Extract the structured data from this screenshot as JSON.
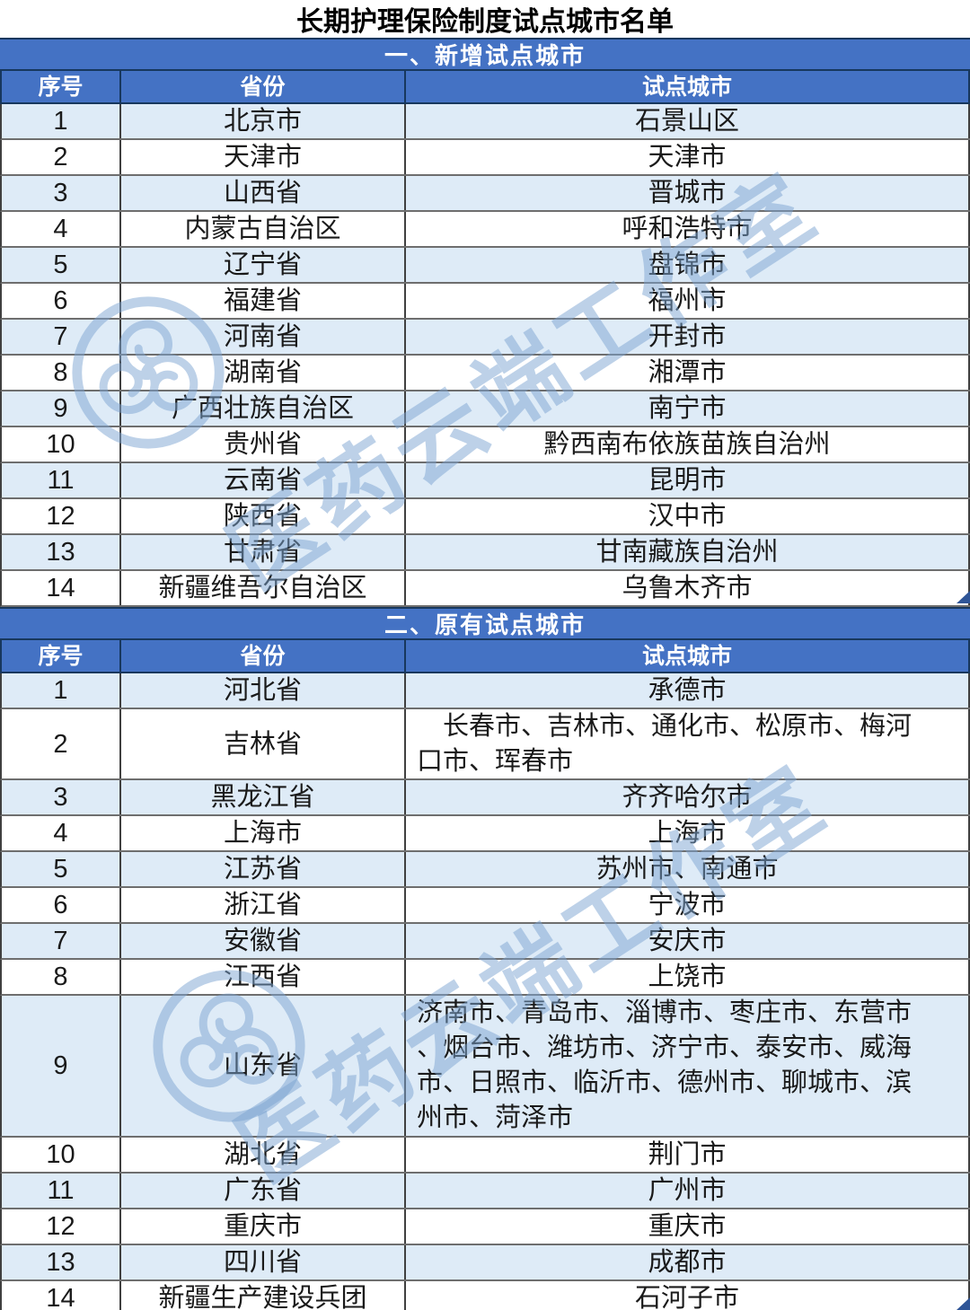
{
  "title": "长期护理保险制度试点城市名单",
  "columns": [
    "序号",
    "省份",
    "试点城市"
  ],
  "sections": [
    {
      "heading": "一、新增试点城市",
      "rows": [
        {
          "no": "1",
          "province": "北京市",
          "cities": "石景山区"
        },
        {
          "no": "2",
          "province": "天津市",
          "cities": "天津市"
        },
        {
          "no": "3",
          "province": "山西省",
          "cities": "晋城市"
        },
        {
          "no": "4",
          "province": "内蒙古自治区",
          "cities": "呼和浩特市"
        },
        {
          "no": "5",
          "province": "辽宁省",
          "cities": "盘锦市"
        },
        {
          "no": "6",
          "province": "福建省",
          "cities": "福州市"
        },
        {
          "no": "7",
          "province": "河南省",
          "cities": "开封市"
        },
        {
          "no": "8",
          "province": "湖南省",
          "cities": "湘潭市"
        },
        {
          "no": "9",
          "province": "广西壮族自治区",
          "cities": "南宁市"
        },
        {
          "no": "10",
          "province": "贵州省",
          "cities": "黔西南布依族苗族自治州"
        },
        {
          "no": "11",
          "province": "云南省",
          "cities": "昆明市"
        },
        {
          "no": "12",
          "province": "陕西省",
          "cities": "汉中市"
        },
        {
          "no": "13",
          "province": "甘肃省",
          "cities": "甘南藏族自治州"
        },
        {
          "no": "14",
          "province": "新疆维吾尔自治区",
          "cities": "乌鲁木齐市"
        }
      ]
    },
    {
      "heading": "二、原有试点城市",
      "rows": [
        {
          "no": "1",
          "province": "河北省",
          "cities": "承德市"
        },
        {
          "no": "2",
          "province": "吉林省",
          "cities": [
            "　长春市、吉林市、通化市、松原市、梅河",
            "口市、珲春市"
          ]
        },
        {
          "no": "3",
          "province": "黑龙江省",
          "cities": "齐齐哈尔市"
        },
        {
          "no": "4",
          "province": "上海市",
          "cities": "上海市"
        },
        {
          "no": "5",
          "province": "江苏省",
          "cities": "苏州市、南通市"
        },
        {
          "no": "6",
          "province": "浙江省",
          "cities": "宁波市"
        },
        {
          "no": "7",
          "province": "安徽省",
          "cities": "安庆市"
        },
        {
          "no": "8",
          "province": "江西省",
          "cities": "上饶市"
        },
        {
          "no": "9",
          "province": "山东省",
          "cities": [
            "济南市、青岛市、淄博市、枣庄市、东营市",
            "、烟台市、潍坊市、济宁市、泰安市、威海",
            "市、日照市、临沂市、德州市、聊城市、滨",
            "州市、菏泽市"
          ]
        },
        {
          "no": "10",
          "province": "湖北省",
          "cities": "荆门市"
        },
        {
          "no": "11",
          "province": "广东省",
          "cities": "广州市"
        },
        {
          "no": "12",
          "province": "重庆市",
          "cities": "重庆市"
        },
        {
          "no": "13",
          "province": "四川省",
          "cities": "成都市"
        },
        {
          "no": "14",
          "province": "新疆生产建设兵团",
          "cities": "石河子市"
        }
      ]
    }
  ],
  "watermark": {
    "text": "医药云端工作室"
  },
  "colors": {
    "banner_bg": "#4472C4",
    "banner_border": "#17375D",
    "row_alt": "#DEEBF7",
    "row_border": "#6E6E6E",
    "column_border": "#404040",
    "header_text": "#FFFFFF",
    "body_text": "#1A1A1A",
    "watermark": "#7DA5D2",
    "corner_mark": "#2F5597"
  }
}
